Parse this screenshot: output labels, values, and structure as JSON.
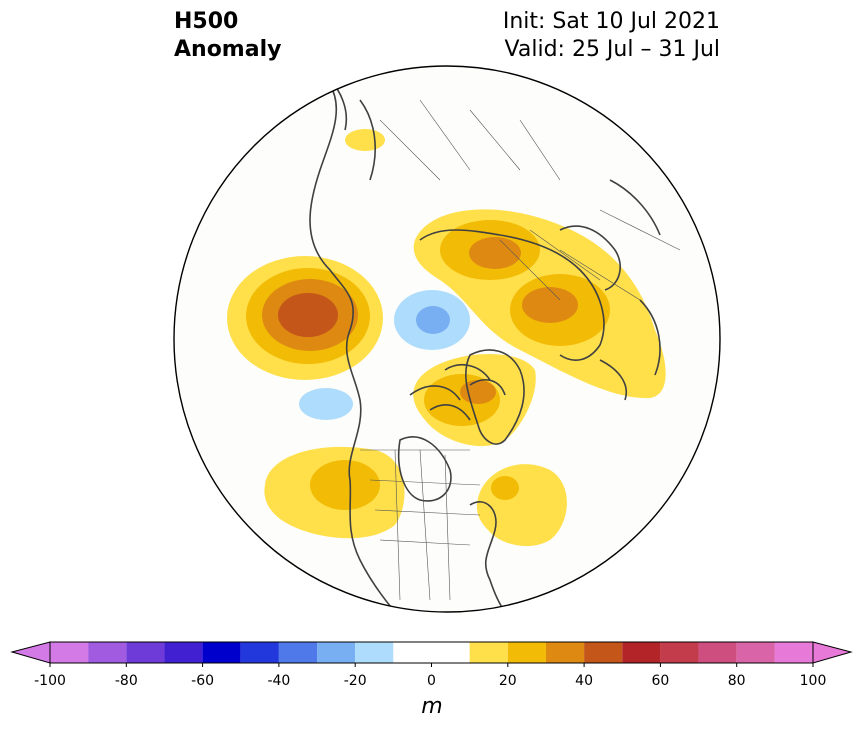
{
  "title": {
    "field": "H500",
    "quantity": "Anomaly",
    "init": "Init: Sat 10 Jul 2021",
    "valid": "Valid: 25 Jul – 31 Jul"
  },
  "colorbar": {
    "unit": "m",
    "ticks": [
      "-100",
      "-80",
      "-60",
      "-40",
      "-20",
      "0",
      "20",
      "40",
      "60",
      "80",
      "100"
    ],
    "bins": [
      {
        "from": -100,
        "to": -90,
        "color": "#d47ae6"
      },
      {
        "from": -90,
        "to": -80,
        "color": "#a05be0"
      },
      {
        "from": -80,
        "to": -70,
        "color": "#6e3ad8"
      },
      {
        "from": -70,
        "to": -60,
        "color": "#4020d0"
      },
      {
        "from": -60,
        "to": -50,
        "color": "#0000cc"
      },
      {
        "from": -50,
        "to": -40,
        "color": "#2238dc"
      },
      {
        "from": -40,
        "to": -30,
        "color": "#4f78e8"
      },
      {
        "from": -30,
        "to": -20,
        "color": "#78aef2"
      },
      {
        "from": -20,
        "to": -10,
        "color": "#aedcfc"
      },
      {
        "from": -10,
        "to": 10,
        "color": "#ffffff"
      },
      {
        "from": 10,
        "to": 20,
        "color": "#ffe04a"
      },
      {
        "from": 20,
        "to": 30,
        "color": "#f2bb06"
      },
      {
        "from": 30,
        "to": 40,
        "color": "#de8a12"
      },
      {
        "from": 40,
        "to": 50,
        "color": "#c4561a"
      },
      {
        "from": 50,
        "to": 60,
        "color": "#b22428"
      },
      {
        "from": 60,
        "to": 70,
        "color": "#c23c4c"
      },
      {
        "from": 70,
        "to": 80,
        "color": "#cf4e80"
      },
      {
        "from": 80,
        "to": 90,
        "color": "#d965a8"
      },
      {
        "from": 90,
        "to": 100,
        "color": "#e77ad8"
      }
    ],
    "extend_low_color": "#d47ae6",
    "extend_high_color": "#e77ad8"
  },
  "map": {
    "projection": "north polar stereographic",
    "ocean_color": "#fdfdfb",
    "coastline_color": "#404040",
    "anomaly_centers": [
      {
        "region": "North Pacific / Aleutians",
        "sign": "positive",
        "peak_m": 45
      },
      {
        "region": "Arctic Ocean near Siberia",
        "sign": "negative",
        "peak_m": -35
      },
      {
        "region": "Bering Strait",
        "sign": "negative",
        "peak_m": -15
      },
      {
        "region": "Central Siberia",
        "sign": "positive",
        "peak_m": 45
      },
      {
        "region": "Eastern Europe / Western Russia",
        "sign": "positive",
        "peak_m": 35
      },
      {
        "region": "Greenland / Baffin Bay",
        "sign": "positive",
        "peak_m": 35
      },
      {
        "region": "Northwestern North America",
        "sign": "positive",
        "peak_m": 25
      },
      {
        "region": "Northeastern North America / W Atlantic",
        "sign": "positive",
        "peak_m": 15
      }
    ]
  }
}
